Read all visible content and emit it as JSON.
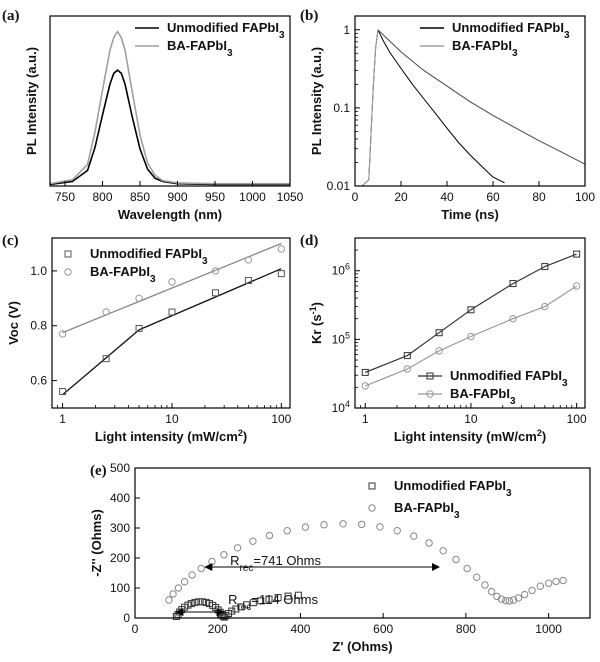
{
  "chart_data": [
    {
      "id": "a",
      "panel_label": "(a)",
      "type": "line",
      "xlabel": "Wavelength (nm)",
      "ylabel": "PL Intensity (a.u.)",
      "xlim": [
        730,
        1050
      ],
      "ylim": [
        0,
        1.1
      ],
      "xticks": [
        750,
        800,
        850,
        900,
        950,
        1000,
        1050
      ],
      "yticks_shown": false,
      "legend_position": "top-right",
      "series": [
        {
          "name": "Unmodified FAPbI",
          "name_sub": "3",
          "color": "#000000",
          "x": [
            730,
            760,
            780,
            790,
            800,
            810,
            815,
            820,
            825,
            830,
            840,
            850,
            860,
            870,
            880,
            900,
            950,
            1050
          ],
          "y": [
            0.01,
            0.03,
            0.1,
            0.25,
            0.46,
            0.66,
            0.73,
            0.75,
            0.73,
            0.66,
            0.44,
            0.24,
            0.11,
            0.05,
            0.03,
            0.015,
            0.01,
            0.01
          ]
        },
        {
          "name": "BA-FAPbI",
          "name_sub": "3",
          "color": "#a0a0a0",
          "x": [
            730,
            760,
            780,
            790,
            800,
            810,
            815,
            820,
            825,
            830,
            840,
            850,
            860,
            870,
            880,
            900,
            950,
            1050
          ],
          "y": [
            0.015,
            0.04,
            0.14,
            0.35,
            0.62,
            0.88,
            0.96,
            1.0,
            0.96,
            0.88,
            0.6,
            0.33,
            0.15,
            0.07,
            0.035,
            0.02,
            0.015,
            0.015
          ]
        }
      ]
    },
    {
      "id": "b",
      "panel_label": "(b)",
      "type": "line",
      "xlabel": "Time (ns)",
      "ylabel": "PL Intensity (a.u.)",
      "xlim": [
        0,
        100
      ],
      "ylim": [
        0.01,
        1.5
      ],
      "yscale": "log",
      "xticks": [
        0,
        20,
        40,
        60,
        80,
        100
      ],
      "yticks": [
        0.01,
        0.1,
        1
      ],
      "ytick_labels": [
        "0.01",
        "0.1",
        "1"
      ],
      "legend_position": "top-right",
      "series": [
        {
          "name": "Unmodified FAPbI",
          "name_sub": "3",
          "color": "#000000",
          "x": [
            3,
            6,
            8,
            9,
            10,
            12,
            15,
            20,
            25,
            30,
            35,
            40,
            45,
            50,
            55,
            60,
            65
          ],
          "y": [
            0.01,
            0.012,
            0.2,
            0.6,
            1.0,
            0.75,
            0.52,
            0.32,
            0.2,
            0.13,
            0.085,
            0.055,
            0.036,
            0.025,
            0.018,
            0.013,
            0.011
          ]
        },
        {
          "name": "BA-FAPbI",
          "name_sub": "3",
          "color": "#a0a0a0",
          "x": [
            3,
            6,
            8,
            9,
            10,
            15,
            20,
            30,
            40,
            50,
            60,
            70,
            80,
            90,
            100
          ],
          "y": [
            0.01,
            0.012,
            0.2,
            0.6,
            1.0,
            0.72,
            0.52,
            0.3,
            0.19,
            0.12,
            0.08,
            0.055,
            0.038,
            0.027,
            0.019
          ]
        },
        {
          "name": "",
          "role": "fit",
          "color": "#555555",
          "x": [
            10,
            20,
            30,
            40,
            50,
            60,
            70,
            80,
            90,
            100
          ],
          "y": [
            1.0,
            0.52,
            0.3,
            0.19,
            0.12,
            0.08,
            0.055,
            0.038,
            0.027,
            0.019
          ]
        }
      ]
    },
    {
      "id": "c",
      "panel_label": "(c)",
      "type": "scatter",
      "xlabel": "Light intensity (mW/cm",
      "xlabel_sup": "2",
      "xlabel_suffix": ")",
      "ylabel": "Voc (V)",
      "xscale": "log",
      "xlim": [
        0.8,
        120
      ],
      "ylim": [
        0.5,
        1.12
      ],
      "xticks": [
        1,
        10,
        100
      ],
      "xtick_labels": [
        "1",
        "10",
        "100"
      ],
      "yticks": [
        0.6,
        0.8,
        1.0
      ],
      "ytick_labels": [
        "0.6",
        "0.8",
        "1.0"
      ],
      "legend_position": "top-left",
      "series": [
        {
          "name": "Unmodified FAPbI",
          "name_sub": "3",
          "marker": "square",
          "color": "#555555",
          "x": [
            1,
            2.5,
            5,
            10,
            25,
            50,
            100
          ],
          "y": [
            0.56,
            0.68,
            0.79,
            0.85,
            0.92,
            0.965,
            0.99
          ],
          "fit_x": [
            1,
            5,
            100
          ],
          "fit_y": [
            0.548,
            0.785,
            1.008
          ]
        },
        {
          "name": "BA-FAPbI",
          "name_sub": "3",
          "marker": "circle",
          "color": "#999999",
          "x": [
            1,
            2.5,
            5,
            10,
            25,
            50,
            100
          ],
          "y": [
            0.77,
            0.85,
            0.9,
            0.96,
            1.0,
            1.04,
            1.08
          ],
          "fit_x": [
            1,
            100
          ],
          "fit_y": [
            0.775,
            1.1
          ]
        }
      ]
    },
    {
      "id": "d",
      "panel_label": "(d)",
      "type": "line",
      "xlabel": "Light intensity (mW/cm",
      "xlabel_sup": "2",
      "xlabel_suffix": ")",
      "ylabel": "Kr (s",
      "ylabel_sup": "-1",
      "ylabel_suffix": ")",
      "xscale": "log",
      "yscale": "log",
      "xlim": [
        0.8,
        120
      ],
      "ylim": [
        10000,
        3000000
      ],
      "xticks": [
        1,
        10,
        100
      ],
      "xtick_labels": [
        "1",
        "10",
        "100"
      ],
      "yticks": [
        10000,
        100000,
        1000000
      ],
      "ytick_bases": [
        "10",
        "10",
        "10"
      ],
      "ytick_exps": [
        "4",
        "5",
        "6"
      ],
      "legend_position": "bottom-right",
      "series": [
        {
          "name": "Unmodified FAPbI",
          "name_sub": "3",
          "marker": "square",
          "color": "#333333",
          "x": [
            1,
            2.5,
            5,
            10,
            25,
            50,
            100
          ],
          "y": [
            33000,
            58000,
            125000,
            270000,
            650000,
            1150000,
            1750000
          ]
        },
        {
          "name": "BA-FAPbI",
          "name_sub": "3",
          "marker": "circle",
          "color": "#999999",
          "x": [
            1,
            2.5,
            5,
            10,
            25,
            50,
            100
          ],
          "y": [
            21000,
            37000,
            68000,
            110000,
            200000,
            300000,
            600000
          ]
        }
      ]
    },
    {
      "id": "e",
      "panel_label": "(e)",
      "type": "scatter",
      "xlabel": "Z' (Ohms)",
      "ylabel": "-Z'' (Ohms)",
      "xlim": [
        0,
        1100
      ],
      "ylim": [
        0,
        500
      ],
      "xticks": [
        0,
        200,
        400,
        600,
        800,
        1000
      ],
      "yticks": [
        0,
        100,
        200,
        300,
        400,
        500
      ],
      "legend_position": "top-right",
      "annotations": [
        {
          "label": "R",
          "sub": "rec",
          "text": "=741 Ohms",
          "arrow_from": 170,
          "arrow_to": 735,
          "y": 170
        },
        {
          "label": "R",
          "sub": "rec",
          "text": "=114 Ohms",
          "arrow_from": 100,
          "arrow_to": 214,
          "y": 20
        }
      ],
      "series": [
        {
          "name": "Unmodified FAPbI",
          "name_sub": "3",
          "marker": "square",
          "color": "#333333",
          "x": [
            100,
            104,
            108,
            113,
            120,
            128,
            136,
            145,
            154,
            163,
            172,
            180,
            188,
            195,
            201,
            206,
            210,
            213,
            216,
            220,
            226,
            234,
            244,
            256,
            270,
            286,
            304,
            324,
            346,
            370,
            395
          ],
          "y": [
            5,
            12,
            20,
            28,
            36,
            43,
            48,
            52,
            54,
            54,
            52,
            48,
            42,
            35,
            27,
            19,
            12,
            6,
            3,
            8,
            15,
            23,
            30,
            37,
            44,
            51,
            57,
            63,
            68,
            73,
            76
          ]
        },
        {
          "name": "BA-FAPbI",
          "name_sub": "3",
          "marker": "circle",
          "color": "#888888",
          "x": [
            82,
            92,
            105,
            120,
            138,
            160,
            186,
            215,
            248,
            285,
            325,
            368,
            412,
            457,
            503,
            548,
            592,
            634,
            674,
            711,
            745,
            776,
            803,
            826,
            846,
            862,
            875,
            886,
            896,
            905,
            915,
            927,
            942,
            960,
            980,
            1000,
            1018,
            1035
          ],
          "y": [
            60,
            80,
            100,
            121,
            143,
            165,
            188,
            211,
            234,
            256,
            275,
            291,
            303,
            311,
            314,
            312,
            304,
            291,
            273,
            250,
            224,
            195,
            165,
            136,
            110,
            88,
            72,
            63,
            58,
            57,
            60,
            67,
            78,
            92,
            106,
            116,
            122,
            125
          ]
        }
      ]
    }
  ]
}
